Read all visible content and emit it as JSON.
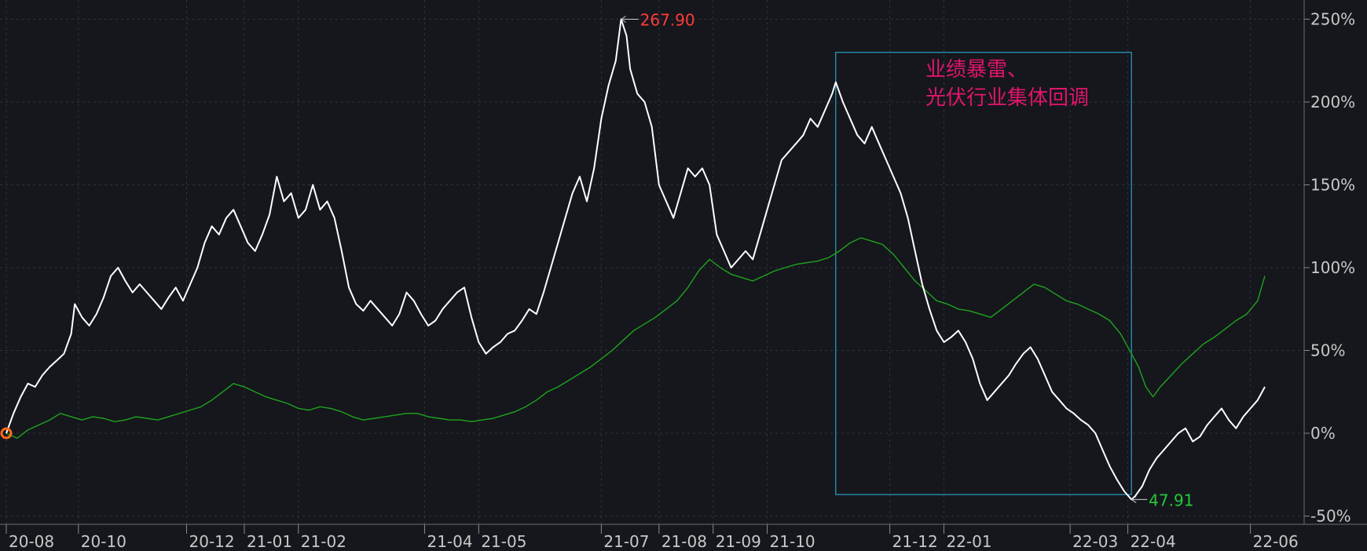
{
  "chart_data": {
    "type": "line",
    "y_unit": "%",
    "ylim": [
      -55,
      255
    ],
    "y_ticks": [
      250,
      200,
      150,
      100,
      50,
      0,
      -50
    ],
    "y_tick_labels": [
      "250%",
      "200%",
      "150%",
      "100%",
      "50%",
      "0%",
      "-50%"
    ],
    "x_tick_labels": [
      "20-08",
      "20-10",
      "20-12",
      "21-01",
      "21-02",
      "21-04",
      "21-05",
      "21-07",
      "21-08",
      "21-09",
      "21-10",
      "21-12",
      "22-01",
      "22-03",
      "22-04",
      "22-06"
    ],
    "x_tick_positions": [
      0,
      40,
      100,
      132,
      162,
      232,
      262,
      330,
      362,
      392,
      422,
      490,
      520,
      590,
      622,
      690
    ],
    "grid": true,
    "series": [
      {
        "color": "#ffffff",
        "points": [
          [
            0,
            0
          ],
          [
            4,
            12
          ],
          [
            8,
            22
          ],
          [
            12,
            30
          ],
          [
            16,
            28
          ],
          [
            20,
            35
          ],
          [
            24,
            40
          ],
          [
            28,
            44
          ],
          [
            32,
            48
          ],
          [
            36,
            60
          ],
          [
            38,
            78
          ],
          [
            42,
            70
          ],
          [
            46,
            65
          ],
          [
            50,
            72
          ],
          [
            54,
            82
          ],
          [
            58,
            95
          ],
          [
            62,
            100
          ],
          [
            66,
            92
          ],
          [
            70,
            85
          ],
          [
            74,
            90
          ],
          [
            78,
            85
          ],
          [
            82,
            80
          ],
          [
            86,
            75
          ],
          [
            90,
            82
          ],
          [
            94,
            88
          ],
          [
            98,
            80
          ],
          [
            102,
            90
          ],
          [
            106,
            100
          ],
          [
            110,
            115
          ],
          [
            114,
            125
          ],
          [
            118,
            120
          ],
          [
            122,
            130
          ],
          [
            126,
            135
          ],
          [
            130,
            125
          ],
          [
            134,
            115
          ],
          [
            138,
            110
          ],
          [
            142,
            120
          ],
          [
            146,
            132
          ],
          [
            150,
            155
          ],
          [
            154,
            140
          ],
          [
            158,
            145
          ],
          [
            162,
            130
          ],
          [
            166,
            135
          ],
          [
            170,
            150
          ],
          [
            174,
            135
          ],
          [
            178,
            140
          ],
          [
            182,
            130
          ],
          [
            186,
            110
          ],
          [
            190,
            88
          ],
          [
            194,
            78
          ],
          [
            198,
            74
          ],
          [
            202,
            80
          ],
          [
            206,
            75
          ],
          [
            210,
            70
          ],
          [
            214,
            65
          ],
          [
            218,
            72
          ],
          [
            222,
            85
          ],
          [
            226,
            80
          ],
          [
            230,
            72
          ],
          [
            234,
            65
          ],
          [
            238,
            68
          ],
          [
            242,
            75
          ],
          [
            246,
            80
          ],
          [
            250,
            85
          ],
          [
            254,
            88
          ],
          [
            258,
            70
          ],
          [
            262,
            55
          ],
          [
            266,
            48
          ],
          [
            270,
            52
          ],
          [
            274,
            55
          ],
          [
            278,
            60
          ],
          [
            282,
            62
          ],
          [
            286,
            68
          ],
          [
            290,
            75
          ],
          [
            294,
            72
          ],
          [
            298,
            85
          ],
          [
            302,
            100
          ],
          [
            306,
            115
          ],
          [
            310,
            130
          ],
          [
            314,
            145
          ],
          [
            318,
            155
          ],
          [
            322,
            140
          ],
          [
            326,
            160
          ],
          [
            330,
            190
          ],
          [
            334,
            210
          ],
          [
            338,
            225
          ],
          [
            341,
            250
          ],
          [
            344,
            240
          ],
          [
            346,
            220
          ],
          [
            350,
            205
          ],
          [
            354,
            200
          ],
          [
            358,
            185
          ],
          [
            362,
            150
          ],
          [
            366,
            140
          ],
          [
            370,
            130
          ],
          [
            374,
            145
          ],
          [
            378,
            160
          ],
          [
            382,
            155
          ],
          [
            386,
            160
          ],
          [
            390,
            150
          ],
          [
            394,
            120
          ],
          [
            398,
            110
          ],
          [
            402,
            100
          ],
          [
            406,
            105
          ],
          [
            410,
            110
          ],
          [
            414,
            105
          ],
          [
            418,
            120
          ],
          [
            422,
            135
          ],
          [
            426,
            150
          ],
          [
            430,
            165
          ],
          [
            434,
            170
          ],
          [
            438,
            175
          ],
          [
            442,
            180
          ],
          [
            446,
            190
          ],
          [
            450,
            185
          ],
          [
            454,
            195
          ],
          [
            458,
            205
          ],
          [
            460,
            212
          ],
          [
            464,
            200
          ],
          [
            468,
            190
          ],
          [
            472,
            180
          ],
          [
            476,
            175
          ],
          [
            480,
            185
          ],
          [
            484,
            175
          ],
          [
            488,
            165
          ],
          [
            492,
            155
          ],
          [
            496,
            145
          ],
          [
            500,
            130
          ],
          [
            504,
            110
          ],
          [
            508,
            90
          ],
          [
            512,
            75
          ],
          [
            516,
            62
          ],
          [
            520,
            55
          ],
          [
            524,
            58
          ],
          [
            528,
            62
          ],
          [
            532,
            55
          ],
          [
            536,
            45
          ],
          [
            540,
            30
          ],
          [
            544,
            20
          ],
          [
            548,
            25
          ],
          [
            552,
            30
          ],
          [
            556,
            35
          ],
          [
            560,
            42
          ],
          [
            564,
            48
          ],
          [
            568,
            52
          ],
          [
            572,
            45
          ],
          [
            576,
            35
          ],
          [
            580,
            25
          ],
          [
            584,
            20
          ],
          [
            588,
            15
          ],
          [
            592,
            12
          ],
          [
            596,
            8
          ],
          [
            600,
            5
          ],
          [
            604,
            0
          ],
          [
            608,
            -10
          ],
          [
            612,
            -20
          ],
          [
            616,
            -28
          ],
          [
            620,
            -35
          ],
          [
            624,
            -40
          ],
          [
            626,
            -38
          ],
          [
            630,
            -32
          ],
          [
            634,
            -22
          ],
          [
            638,
            -15
          ],
          [
            642,
            -10
          ],
          [
            646,
            -5
          ],
          [
            650,
            0
          ],
          [
            654,
            3
          ],
          [
            658,
            -5
          ],
          [
            662,
            -2
          ],
          [
            666,
            5
          ],
          [
            670,
            10
          ],
          [
            674,
            15
          ],
          [
            678,
            8
          ],
          [
            682,
            3
          ],
          [
            686,
            10
          ],
          [
            690,
            15
          ],
          [
            694,
            20
          ],
          [
            698,
            28
          ]
        ]
      },
      {
        "color": "#1fa31f",
        "points": [
          [
            0,
            0
          ],
          [
            6,
            -3
          ],
          [
            12,
            2
          ],
          [
            18,
            5
          ],
          [
            24,
            8
          ],
          [
            30,
            12
          ],
          [
            36,
            10
          ],
          [
            42,
            8
          ],
          [
            48,
            10
          ],
          [
            54,
            9
          ],
          [
            60,
            7
          ],
          [
            66,
            8
          ],
          [
            72,
            10
          ],
          [
            78,
            9
          ],
          [
            84,
            8
          ],
          [
            90,
            10
          ],
          [
            96,
            12
          ],
          [
            102,
            14
          ],
          [
            108,
            16
          ],
          [
            114,
            20
          ],
          [
            120,
            25
          ],
          [
            126,
            30
          ],
          [
            132,
            28
          ],
          [
            138,
            25
          ],
          [
            144,
            22
          ],
          [
            150,
            20
          ],
          [
            156,
            18
          ],
          [
            162,
            15
          ],
          [
            168,
            14
          ],
          [
            174,
            16
          ],
          [
            180,
            15
          ],
          [
            186,
            13
          ],
          [
            192,
            10
          ],
          [
            198,
            8
          ],
          [
            204,
            9
          ],
          [
            210,
            10
          ],
          [
            216,
            11
          ],
          [
            222,
            12
          ],
          [
            228,
            12
          ],
          [
            234,
            10
          ],
          [
            240,
            9
          ],
          [
            246,
            8
          ],
          [
            252,
            8
          ],
          [
            258,
            7
          ],
          [
            264,
            8
          ],
          [
            270,
            9
          ],
          [
            276,
            11
          ],
          [
            282,
            13
          ],
          [
            288,
            16
          ],
          [
            294,
            20
          ],
          [
            300,
            25
          ],
          [
            306,
            28
          ],
          [
            312,
            32
          ],
          [
            318,
            36
          ],
          [
            324,
            40
          ],
          [
            330,
            45
          ],
          [
            336,
            50
          ],
          [
            342,
            56
          ],
          [
            348,
            62
          ],
          [
            354,
            66
          ],
          [
            360,
            70
          ],
          [
            366,
            75
          ],
          [
            372,
            80
          ],
          [
            378,
            88
          ],
          [
            384,
            98
          ],
          [
            390,
            105
          ],
          [
            396,
            100
          ],
          [
            402,
            96
          ],
          [
            408,
            94
          ],
          [
            414,
            92
          ],
          [
            420,
            95
          ],
          [
            426,
            98
          ],
          [
            432,
            100
          ],
          [
            438,
            102
          ],
          [
            444,
            103
          ],
          [
            450,
            104
          ],
          [
            456,
            106
          ],
          [
            462,
            110
          ],
          [
            468,
            115
          ],
          [
            474,
            118
          ],
          [
            480,
            116
          ],
          [
            486,
            114
          ],
          [
            492,
            108
          ],
          [
            498,
            100
          ],
          [
            504,
            92
          ],
          [
            510,
            86
          ],
          [
            516,
            80
          ],
          [
            522,
            78
          ],
          [
            528,
            75
          ],
          [
            534,
            74
          ],
          [
            540,
            72
          ],
          [
            546,
            70
          ],
          [
            552,
            75
          ],
          [
            558,
            80
          ],
          [
            564,
            85
          ],
          [
            570,
            90
          ],
          [
            576,
            88
          ],
          [
            582,
            84
          ],
          [
            588,
            80
          ],
          [
            594,
            78
          ],
          [
            600,
            75
          ],
          [
            606,
            72
          ],
          [
            612,
            68
          ],
          [
            618,
            60
          ],
          [
            624,
            48
          ],
          [
            628,
            40
          ],
          [
            632,
            28
          ],
          [
            636,
            22
          ],
          [
            640,
            28
          ],
          [
            646,
            35
          ],
          [
            652,
            42
          ],
          [
            658,
            48
          ],
          [
            664,
            54
          ],
          [
            670,
            58
          ],
          [
            676,
            63
          ],
          [
            682,
            68
          ],
          [
            688,
            72
          ],
          [
            694,
            80
          ],
          [
            698,
            95
          ]
        ]
      }
    ],
    "annotations": {
      "max_label": "267.90",
      "max_label_color": "#ff3b3b",
      "max_point": [
        341,
        250
      ],
      "min_label": "47.91",
      "min_label_color": "#22c93b",
      "min_point": [
        624,
        -40
      ],
      "callout_line1": "业绩暴雷、",
      "callout_line2": "光伏行业集体回调",
      "callout_color": "#e0156b",
      "highlight_box": {
        "x0": 460,
        "x1": 624,
        "y0": 230,
        "y1": -37
      },
      "highlight_box_color": "#2aa0c8"
    }
  }
}
